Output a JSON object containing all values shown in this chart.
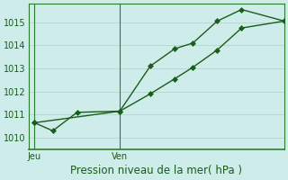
{
  "title": "",
  "xlabel": "Pression niveau de la mer( hPa )",
  "background_color": "#cdecea",
  "grid_color": "#b8d8d4",
  "line_color": "#1a5c1a",
  "spine_color": "#2e7d32",
  "ylim": [
    1009.5,
    1015.8
  ],
  "yticks": [
    1010,
    1011,
    1012,
    1013,
    1014,
    1015
  ],
  "xlim": [
    0,
    21
  ],
  "xtick_positions": [
    0.5,
    7.5
  ],
  "xtick_labels": [
    "Jeu",
    "Ven"
  ],
  "vlines": [
    0.5,
    7.5
  ],
  "series1_x": [
    0.5,
    2.0,
    4.0,
    7.5,
    10.0,
    12.0,
    13.5,
    15.5,
    17.5,
    21.0
  ],
  "series1_y": [
    1010.65,
    1010.3,
    1011.1,
    1011.15,
    1013.1,
    1013.85,
    1014.1,
    1015.05,
    1015.55,
    1015.05
  ],
  "series2_x": [
    0.5,
    7.5,
    10.0,
    12.0,
    13.5,
    15.5,
    17.5,
    21.0
  ],
  "series2_y": [
    1010.65,
    1011.15,
    1011.9,
    1012.55,
    1013.05,
    1013.8,
    1014.75,
    1015.05
  ],
  "xlabel_fontsize": 8.5,
  "tick_fontsize": 7,
  "marker_size": 3.0
}
